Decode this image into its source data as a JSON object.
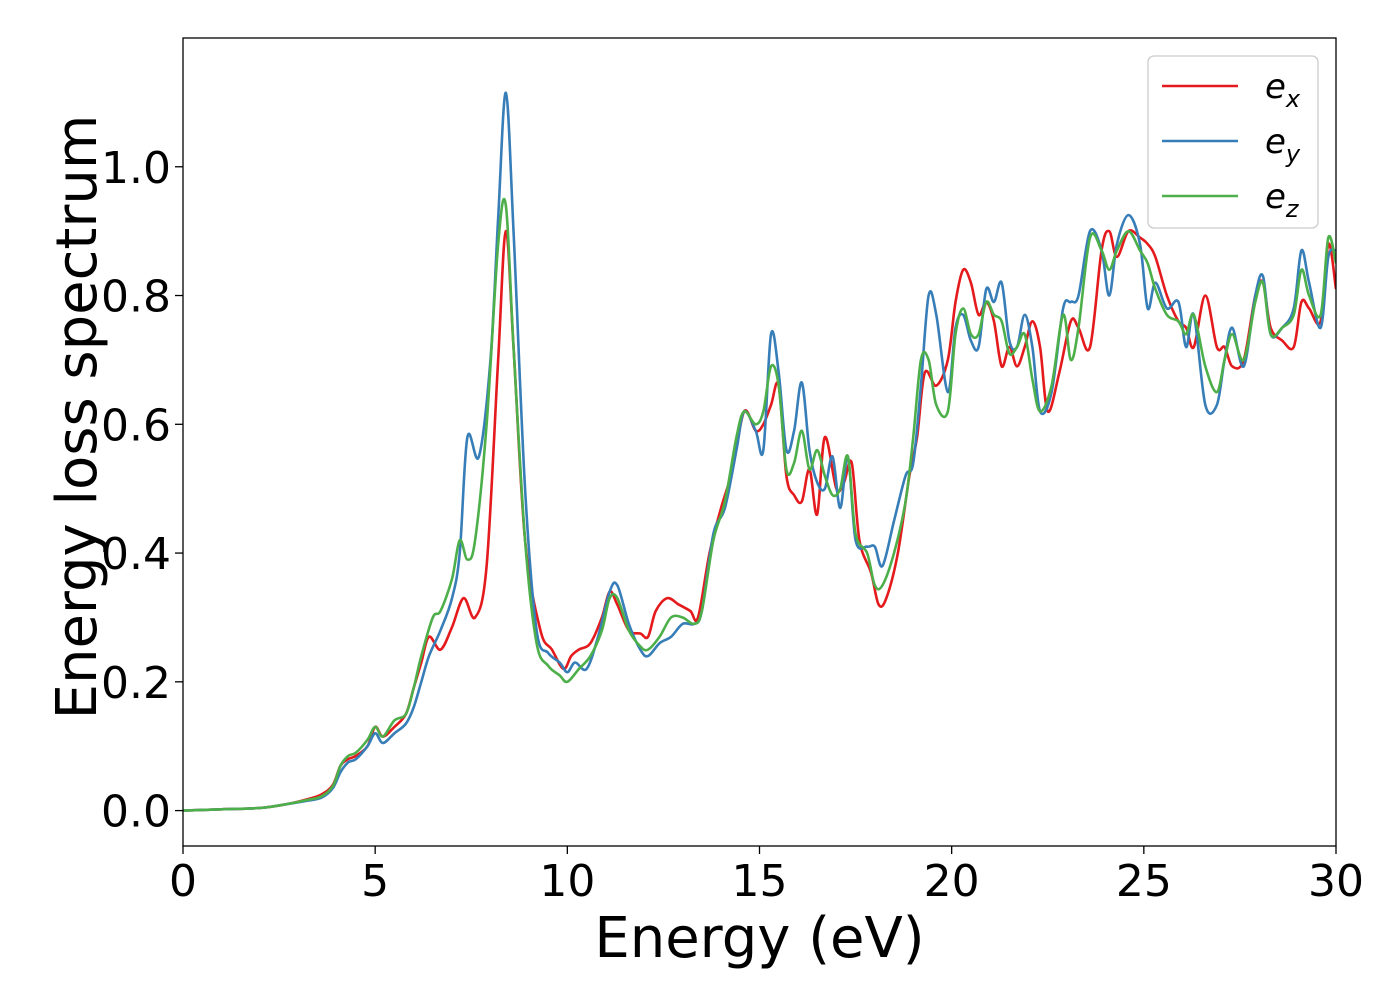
{
  "chart_data": {
    "type": "line",
    "title": "",
    "xlabel": "Energy (eV)",
    "ylabel": "Energy loss spectrum",
    "xlim": [
      0,
      30
    ],
    "ylim": [
      -0.055,
      1.2
    ],
    "xticks": [
      0,
      5,
      10,
      15,
      20,
      25,
      30
    ],
    "xtick_labels": [
      "0",
      "5",
      "10",
      "15",
      "20",
      "25",
      "30"
    ],
    "yticks": [
      0.0,
      0.2,
      0.4,
      0.6,
      0.8,
      1.0
    ],
    "ytick_labels": [
      "0.0",
      "0.2",
      "0.4",
      "0.6",
      "0.8",
      "1.0"
    ],
    "grid": false,
    "legend_position": "top-right",
    "series": [
      {
        "name": "e_x",
        "label_main": "e",
        "label_sub": "x",
        "color": "#e41a1c",
        "x": [
          0,
          1,
          2,
          2.7,
          3.2,
          3.6,
          3.9,
          4.1,
          4.3,
          4.5,
          4.8,
          5.0,
          5.2,
          5.5,
          5.8,
          6.0,
          6.2,
          6.4,
          6.7,
          7.0,
          7.3,
          7.6,
          7.9,
          8.2,
          8.4,
          8.6,
          8.9,
          9.3,
          9.6,
          9.9,
          10.1,
          10.3,
          10.6,
          10.9,
          11.1,
          11.3,
          11.6,
          11.9,
          12.1,
          12.3,
          12.6,
          12.9,
          13.2,
          13.4,
          13.7,
          14.0,
          14.3,
          14.6,
          14.9,
          15.1,
          15.3,
          15.5,
          15.7,
          15.9,
          16.1,
          16.3,
          16.5,
          16.7,
          17.0,
          17.2,
          17.4,
          17.6,
          17.9,
          18.1,
          18.3,
          18.6,
          18.9,
          19.1,
          19.3,
          19.6,
          19.9,
          20.1,
          20.3,
          20.5,
          20.7,
          20.9,
          21.1,
          21.3,
          21.5,
          21.7,
          21.9,
          22.1,
          22.3,
          22.5,
          22.8,
          23.1,
          23.3,
          23.6,
          23.9,
          24.1,
          24.3,
          24.6,
          24.9,
          25.1,
          25.3,
          25.6,
          25.9,
          26.1,
          26.3,
          26.6,
          26.9,
          27.1,
          27.3,
          27.6,
          27.9,
          28.1,
          28.3,
          28.6,
          28.9,
          29.1,
          29.3,
          29.6,
          29.8,
          30
        ],
        "y": [
          0,
          0.002,
          0.004,
          0.01,
          0.017,
          0.025,
          0.04,
          0.07,
          0.08,
          0.085,
          0.1,
          0.13,
          0.115,
          0.13,
          0.15,
          0.19,
          0.23,
          0.27,
          0.25,
          0.285,
          0.33,
          0.3,
          0.38,
          0.7,
          0.9,
          0.72,
          0.42,
          0.28,
          0.25,
          0.22,
          0.24,
          0.25,
          0.26,
          0.3,
          0.34,
          0.32,
          0.28,
          0.275,
          0.27,
          0.31,
          0.33,
          0.32,
          0.31,
          0.3,
          0.4,
          0.47,
          0.53,
          0.62,
          0.59,
          0.6,
          0.63,
          0.66,
          0.52,
          0.49,
          0.48,
          0.53,
          0.46,
          0.58,
          0.5,
          0.51,
          0.54,
          0.42,
          0.37,
          0.32,
          0.33,
          0.4,
          0.52,
          0.58,
          0.68,
          0.66,
          0.7,
          0.79,
          0.84,
          0.82,
          0.77,
          0.79,
          0.76,
          0.69,
          0.72,
          0.69,
          0.72,
          0.76,
          0.72,
          0.62,
          0.68,
          0.76,
          0.75,
          0.72,
          0.87,
          0.9,
          0.86,
          0.9,
          0.89,
          0.88,
          0.86,
          0.8,
          0.76,
          0.75,
          0.72,
          0.8,
          0.72,
          0.72,
          0.69,
          0.7,
          0.8,
          0.82,
          0.75,
          0.73,
          0.72,
          0.79,
          0.78,
          0.76,
          0.88,
          0.81
        ]
      },
      {
        "name": "e_y",
        "label_main": "e",
        "label_sub": "y",
        "color": "#377eb8",
        "x": [
          0,
          1,
          2,
          2.7,
          3.2,
          3.6,
          3.9,
          4.1,
          4.3,
          4.5,
          4.8,
          5.0,
          5.2,
          5.5,
          5.8,
          6.0,
          6.2,
          6.4,
          6.7,
          7.0,
          7.2,
          7.4,
          7.7,
          8.0,
          8.2,
          8.4,
          8.6,
          8.9,
          9.2,
          9.5,
          9.8,
          10.0,
          10.2,
          10.5,
          10.8,
          11.1,
          11.3,
          11.6,
          11.9,
          12.1,
          12.4,
          12.7,
          13.0,
          13.3,
          13.5,
          13.8,
          14.1,
          14.4,
          14.6,
          14.9,
          15.1,
          15.3,
          15.5,
          15.7,
          15.9,
          16.1,
          16.3,
          16.5,
          16.7,
          16.9,
          17.1,
          17.3,
          17.5,
          17.8,
          18.0,
          18.2,
          18.5,
          18.8,
          19.0,
          19.2,
          19.4,
          19.6,
          19.9,
          20.1,
          20.3,
          20.5,
          20.7,
          20.9,
          21.1,
          21.3,
          21.5,
          21.7,
          21.9,
          22.1,
          22.3,
          22.6,
          22.9,
          23.1,
          23.3,
          23.6,
          23.9,
          24.1,
          24.3,
          24.6,
          24.9,
          25.1,
          25.3,
          25.6,
          25.9,
          26.1,
          26.3,
          26.6,
          26.9,
          27.1,
          27.3,
          27.6,
          27.9,
          28.1,
          28.3,
          28.6,
          28.9,
          29.1,
          29.3,
          29.6,
          29.8,
          30
        ],
        "y": [
          0,
          0.002,
          0.004,
          0.01,
          0.015,
          0.02,
          0.035,
          0.06,
          0.075,
          0.08,
          0.1,
          0.12,
          0.105,
          0.12,
          0.135,
          0.16,
          0.2,
          0.24,
          0.28,
          0.33,
          0.4,
          0.58,
          0.55,
          0.7,
          0.92,
          1.115,
          0.9,
          0.5,
          0.28,
          0.245,
          0.23,
          0.215,
          0.23,
          0.22,
          0.27,
          0.34,
          0.35,
          0.29,
          0.25,
          0.24,
          0.26,
          0.27,
          0.29,
          0.29,
          0.31,
          0.43,
          0.47,
          0.56,
          0.62,
          0.59,
          0.56,
          0.74,
          0.68,
          0.56,
          0.59,
          0.665,
          0.56,
          0.51,
          0.5,
          0.55,
          0.47,
          0.55,
          0.42,
          0.41,
          0.41,
          0.38,
          0.45,
          0.52,
          0.54,
          0.66,
          0.8,
          0.77,
          0.65,
          0.75,
          0.77,
          0.73,
          0.72,
          0.81,
          0.79,
          0.82,
          0.73,
          0.72,
          0.77,
          0.72,
          0.62,
          0.65,
          0.78,
          0.79,
          0.8,
          0.9,
          0.87,
          0.8,
          0.88,
          0.925,
          0.88,
          0.78,
          0.82,
          0.78,
          0.79,
          0.72,
          0.77,
          0.63,
          0.63,
          0.7,
          0.75,
          0.69,
          0.8,
          0.83,
          0.74,
          0.75,
          0.78,
          0.87,
          0.82,
          0.75,
          0.86,
          0.87
        ]
      },
      {
        "name": "e_z",
        "label_main": "e",
        "label_sub": "z",
        "color": "#4daf4a",
        "x": [
          0,
          1,
          2,
          2.7,
          3.2,
          3.6,
          3.9,
          4.1,
          4.3,
          4.5,
          4.8,
          5.0,
          5.2,
          5.5,
          5.8,
          6.0,
          6.2,
          6.5,
          6.7,
          7.0,
          7.2,
          7.4,
          7.6,
          7.9,
          8.2,
          8.4,
          8.6,
          8.9,
          9.2,
          9.5,
          9.8,
          10.0,
          10.3,
          10.6,
          10.9,
          11.1,
          11.3,
          11.6,
          11.9,
          12.1,
          12.4,
          12.7,
          13.0,
          13.3,
          13.5,
          13.8,
          14.1,
          14.4,
          14.6,
          14.9,
          15.1,
          15.3,
          15.5,
          15.7,
          15.9,
          16.1,
          16.3,
          16.5,
          16.7,
          16.9,
          17.1,
          17.3,
          17.5,
          17.8,
          18.0,
          18.2,
          18.5,
          18.8,
          19.0,
          19.2,
          19.4,
          19.6,
          19.9,
          20.1,
          20.3,
          20.5,
          20.7,
          20.9,
          21.1,
          21.3,
          21.5,
          21.7,
          21.9,
          22.1,
          22.3,
          22.6,
          22.9,
          23.1,
          23.3,
          23.6,
          23.9,
          24.1,
          24.3,
          24.6,
          24.9,
          25.1,
          25.3,
          25.6,
          25.9,
          26.1,
          26.3,
          26.6,
          26.9,
          27.1,
          27.3,
          27.6,
          27.9,
          28.1,
          28.3,
          28.6,
          28.9,
          29.1,
          29.3,
          29.6,
          29.8,
          30
        ],
        "y": [
          0,
          0.002,
          0.004,
          0.01,
          0.016,
          0.022,
          0.038,
          0.07,
          0.085,
          0.09,
          0.11,
          0.13,
          0.115,
          0.14,
          0.15,
          0.19,
          0.24,
          0.3,
          0.31,
          0.36,
          0.42,
          0.39,
          0.42,
          0.6,
          0.88,
          0.94,
          0.72,
          0.42,
          0.26,
          0.225,
          0.21,
          0.2,
          0.22,
          0.24,
          0.28,
          0.33,
          0.33,
          0.28,
          0.255,
          0.25,
          0.27,
          0.3,
          0.3,
          0.29,
          0.31,
          0.42,
          0.48,
          0.58,
          0.62,
          0.6,
          0.62,
          0.69,
          0.66,
          0.53,
          0.54,
          0.59,
          0.53,
          0.56,
          0.52,
          0.49,
          0.5,
          0.55,
          0.43,
          0.4,
          0.35,
          0.35,
          0.4,
          0.48,
          0.58,
          0.7,
          0.7,
          0.63,
          0.62,
          0.74,
          0.78,
          0.74,
          0.74,
          0.79,
          0.77,
          0.76,
          0.71,
          0.72,
          0.74,
          0.67,
          0.62,
          0.66,
          0.77,
          0.7,
          0.75,
          0.89,
          0.87,
          0.84,
          0.87,
          0.9,
          0.87,
          0.85,
          0.81,
          0.77,
          0.76,
          0.74,
          0.77,
          0.69,
          0.65,
          0.7,
          0.74,
          0.7,
          0.79,
          0.82,
          0.74,
          0.75,
          0.77,
          0.84,
          0.8,
          0.77,
          0.89,
          0.85
        ]
      }
    ]
  }
}
